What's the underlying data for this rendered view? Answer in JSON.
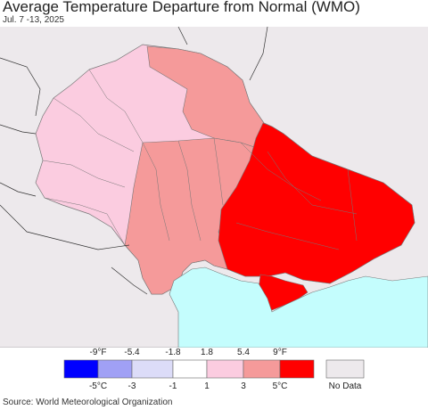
{
  "title": "Average Temperature Departure from Normal (WMO)",
  "subtitle": "Jul. 7 -13, 2025",
  "legend": {
    "f_labels": [
      "-9°F",
      "-5.4",
      "-1.8",
      "1.8",
      "5.4",
      "9°F"
    ],
    "c_labels": [
      "-5°C",
      "-3",
      "-1",
      "1",
      "3",
      "5°C"
    ],
    "colors": [
      "#0000ff",
      "#a0a0f5",
      "#dcdcf8",
      "#ffffff",
      "#fbcce0",
      "#f59a9a",
      "#ff0000"
    ],
    "nodata_label": "No Data",
    "nodata_color": "#ede9ec"
  },
  "map_colors": {
    "background": "#ede9ec",
    "sea": "#c4fdfd",
    "light_pink": "#fbcce0",
    "salmon": "#f59a9a",
    "red": "#ff0000"
  },
  "source": "Source: World Meteorological Organization"
}
